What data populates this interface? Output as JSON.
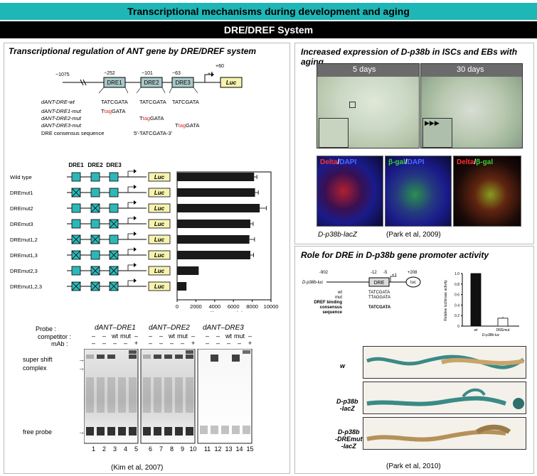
{
  "header": {
    "title": "Transcriptional mechanisms during development and aging",
    "subtitle": "DRE/DREF System"
  },
  "left_panel": {
    "title": "Transcriptional regulation of ANT gene by DRE/DREF system",
    "promoter": {
      "positions": [
        "−1075",
        "−252",
        "−101",
        "−63",
        "+1",
        "+60"
      ],
      "boxes": [
        "DRE1",
        "DRE2",
        "DRE3"
      ],
      "luc": "Luc",
      "rows": [
        {
          "label": "dANT-DRE-wt",
          "seqs": [
            "TATCGATA",
            "TATCGATA",
            "TATCGATA"
          ]
        },
        {
          "label": "dANT-DRE1-mut",
          "seqs": [
            "TtagGATA",
            "",
            ""
          ]
        },
        {
          "label": "dANT-DRE2-mut",
          "seqs": [
            "",
            "TtagGATA",
            ""
          ]
        },
        {
          "label": "dANT-DRE3-mut",
          "seqs": [
            "",
            "",
            "TtagGATA"
          ]
        }
      ],
      "consensus_label": "DRE consensus sequence",
      "consensus_seq": "5′-TATCGATA-3′"
    },
    "reporter": {
      "header_labels": [
        "DRE1",
        "DRE2",
        "DRE3"
      ],
      "luc": "Luc",
      "constructs": [
        {
          "name": "Wild type",
          "mut": [
            false,
            false,
            false
          ]
        },
        {
          "name": "DREmut1",
          "mut": [
            true,
            false,
            false
          ]
        },
        {
          "name": "DREmut2",
          "mut": [
            false,
            true,
            false
          ]
        },
        {
          "name": "DREmut3",
          "mut": [
            false,
            false,
            true
          ]
        },
        {
          "name": "DREmut1,2",
          "mut": [
            true,
            true,
            false
          ]
        },
        {
          "name": "DREmut1,3",
          "mut": [
            true,
            false,
            true
          ]
        },
        {
          "name": "DREmut2,3",
          "mut": [
            false,
            true,
            true
          ]
        },
        {
          "name": "DREmut1,2,3",
          "mut": [
            true,
            true,
            true
          ]
        }
      ]
    },
    "gel": {
      "probe_label": "Probe :",
      "competitor_label": "competitor :",
      "mab_label": "mAb :",
      "probe_groups": [
        "dANT–DRE1",
        "dANT–DRE2",
        "dANT–DRE3"
      ],
      "competitor_row": [
        "–",
        "–",
        "wt",
        "mut",
        "–"
      ],
      "mab_row": [
        "–",
        "–",
        "–",
        "–",
        "+"
      ],
      "super_shift": "super shift",
      "complex": "complex",
      "free_probe": "free probe",
      "lanes": [
        "1",
        "2",
        "3",
        "4",
        "5",
        "6",
        "7",
        "8",
        "9",
        "10",
        "11",
        "12",
        "13",
        "14",
        "15"
      ]
    },
    "citation": "(Kim et al, 2007)"
  },
  "chart_data": [
    {
      "type": "bar",
      "orientation": "horizontal",
      "categories": [
        "Wild type",
        "DREmut1",
        "DREmut2",
        "DREmut3",
        "DREmut1,2",
        "DREmut1,3",
        "DREmut2,3",
        "DREmut1,2,3"
      ],
      "values": [
        8200,
        8300,
        8800,
        7800,
        7700,
        7800,
        2300,
        1000
      ],
      "errors": [
        300,
        350,
        700,
        300,
        550,
        350,
        0,
        0
      ],
      "xlabel": "Luciferase activity",
      "xlim": [
        0,
        10000
      ],
      "xticks": [
        "0",
        "2000",
        "4000",
        "6000",
        "8000",
        "10000"
      ]
    },
    {
      "type": "bar",
      "categories": [
        "wt",
        "DREmut"
      ],
      "values": [
        1.0,
        0.15
      ],
      "errors": [
        0,
        0.03
      ],
      "ylabel": "Relative luciferase activity",
      "ylim": [
        0,
        1.0
      ],
      "yticks": [
        "0",
        "0.2",
        "0.4",
        "0.6",
        "0.8",
        "1.0"
      ],
      "xlabel": "D-p38b-luc"
    }
  ],
  "right_top": {
    "title": "Increased expression  of D-p38b in ISCs and EBs with aging",
    "ages": [
      "5 days",
      "30 days"
    ],
    "stains": [
      {
        "a": "Delta",
        "sep": "/",
        "b": "DAPI"
      },
      {
        "a": "β-gal",
        "sep": "/",
        "b": "DAPI"
      },
      {
        "a": "Delta",
        "sep": "/",
        "b": "β-gal"
      }
    ],
    "genotype": "D-p38b-lacZ",
    "citation": "(Park et al, 2009)"
  },
  "right_bottom": {
    "title": "Role for DRE in D-p38b gene promoter activity",
    "diagram": {
      "construct": "D-p38b-luc",
      "positions": [
        "-902",
        "-12",
        "-5",
        "+1",
        "+208"
      ],
      "dre": "DRE",
      "luc": "luc",
      "labels": [
        "wt",
        "mut",
        "DREF binding",
        "consensus",
        "sequence"
      ],
      "seq_wt": "TATCGATA",
      "seq_mut": "TTAGGATA",
      "seq_consensus": "TATCGATA"
    },
    "guts": [
      "w",
      "D-p38b\n-lacZ",
      "D-p38b\n-DREmut\n-lacZ"
    ],
    "citation": "(Park et al, 2010)"
  },
  "colors": {
    "banner": "#1fb6b6",
    "dre_box": "#2fb7b7",
    "luc_box": "#f7f3b0",
    "bar": "#1a1a1a",
    "mut_red": "#d0302a"
  }
}
